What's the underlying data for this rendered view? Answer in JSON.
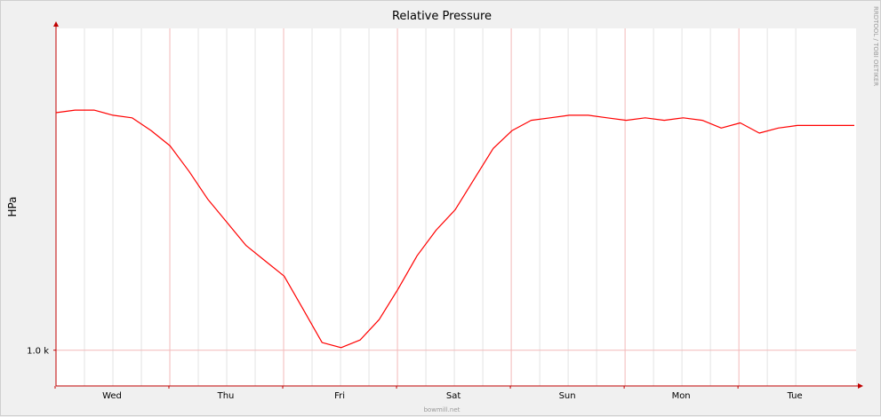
{
  "chart_data": {
    "type": "line",
    "title": "Relative Pressure",
    "ylabel": "HPa",
    "xlabel": "",
    "x_categories": [
      "Wed",
      "Thu",
      "Fri",
      "Sat",
      "Sun",
      "Mon",
      "Tue"
    ],
    "y_ticks": [
      {
        "value": 1000,
        "label": "1.0 k"
      }
    ],
    "ylim": [
      998.6,
      1012.6
    ],
    "grid": true,
    "series": [
      {
        "color": "#ff0000",
        "x": [
          0.0,
          0.5,
          1.0,
          1.5,
          2.0,
          2.5,
          3.0,
          3.5,
          4.0,
          4.5,
          5.0,
          5.5,
          6.0,
          6.5,
          7.0,
          7.5,
          8.0,
          8.5,
          9.0,
          9.5,
          10.0,
          10.5,
          11.0,
          11.5,
          12.0,
          12.5,
          13.0,
          13.5,
          14.0,
          14.5,
          15.0,
          15.5,
          16.0,
          16.5,
          17.0,
          17.5,
          18.0,
          18.5,
          19.0,
          19.5,
          20.0,
          20.5,
          21.0
        ],
        "values": [
          1009.3,
          1009.4,
          1009.4,
          1009.2,
          1009.1,
          1008.6,
          1008.0,
          1007.0,
          1005.9,
          1005.0,
          1004.1,
          1003.5,
          1002.9,
          1001.6,
          1000.3,
          1000.1,
          1000.4,
          1001.2,
          1002.4,
          1003.7,
          1004.7,
          1005.5,
          1006.7,
          1007.9,
          1008.6,
          1009.0,
          1009.1,
          1009.2,
          1009.2,
          1009.1,
          1009.0,
          1009.1,
          1009.0,
          1009.1,
          1009.0,
          1008.7,
          1008.9,
          1008.5,
          1008.7,
          1008.8,
          1008.8,
          1008.8,
          1008.8
        ]
      }
    ]
  },
  "credit": "RRDTOOL / TOBI OETIKER",
  "footer": "bowmill.net"
}
